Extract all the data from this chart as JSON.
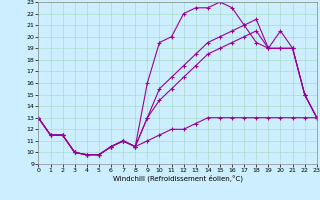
{
  "xlabel": "Windchill (Refroidissement éolien,°C)",
  "bg_color": "#cceeff",
  "grid_color": "#aaddcc",
  "line_color": "#990099",
  "xlim": [
    0,
    23
  ],
  "ylim": [
    9,
    23
  ],
  "xticks": [
    0,
    1,
    2,
    3,
    4,
    5,
    6,
    7,
    8,
    9,
    10,
    11,
    12,
    13,
    14,
    15,
    16,
    17,
    18,
    19,
    20,
    21,
    22,
    23
  ],
  "yticks": [
    9,
    10,
    11,
    12,
    13,
    14,
    15,
    16,
    17,
    18,
    19,
    20,
    21,
    22,
    23
  ],
  "line1_x": [
    0,
    1,
    2,
    3,
    4,
    5,
    6,
    7,
    8,
    9,
    10,
    11,
    12,
    13,
    14,
    15,
    16,
    17,
    18,
    19,
    20,
    21,
    22,
    23
  ],
  "line1_y": [
    13.0,
    11.5,
    11.5,
    10.0,
    9.8,
    9.8,
    10.5,
    11.0,
    10.5,
    16.0,
    19.5,
    20.0,
    22.0,
    22.5,
    22.5,
    23.0,
    22.5,
    21.0,
    19.5,
    19.0,
    20.5,
    19.0,
    15.0,
    13.0
  ],
  "line2_x": [
    0,
    1,
    2,
    3,
    4,
    5,
    6,
    7,
    8,
    9,
    10,
    11,
    12,
    13,
    14,
    15,
    16,
    17,
    18,
    19,
    20,
    21,
    22,
    23
  ],
  "line2_y": [
    13.0,
    11.5,
    11.5,
    10.0,
    9.8,
    9.8,
    10.5,
    11.0,
    10.5,
    13.0,
    15.5,
    16.5,
    17.5,
    18.5,
    19.5,
    20.0,
    20.5,
    21.0,
    21.5,
    19.0,
    19.0,
    19.0,
    15.0,
    13.0
  ],
  "line3_x": [
    0,
    1,
    2,
    3,
    4,
    5,
    6,
    7,
    8,
    9,
    10,
    11,
    12,
    13,
    14,
    15,
    16,
    17,
    18,
    19,
    20,
    21,
    22,
    23
  ],
  "line3_y": [
    13.0,
    11.5,
    11.5,
    10.0,
    9.8,
    9.8,
    10.5,
    11.0,
    10.5,
    13.0,
    14.5,
    15.5,
    16.5,
    17.5,
    18.5,
    19.0,
    19.5,
    20.0,
    20.5,
    19.0,
    19.0,
    19.0,
    15.0,
    13.0
  ],
  "line4_x": [
    0,
    1,
    2,
    3,
    4,
    5,
    6,
    7,
    8,
    9,
    10,
    11,
    12,
    13,
    14,
    15,
    16,
    17,
    18,
    19,
    20,
    21,
    22,
    23
  ],
  "line4_y": [
    13.0,
    11.5,
    11.5,
    10.0,
    9.8,
    9.8,
    10.5,
    11.0,
    10.5,
    11.0,
    11.5,
    12.0,
    12.0,
    12.5,
    13.0,
    13.0,
    13.0,
    13.0,
    13.0,
    13.0,
    13.0,
    13.0,
    13.0,
    13.0
  ]
}
